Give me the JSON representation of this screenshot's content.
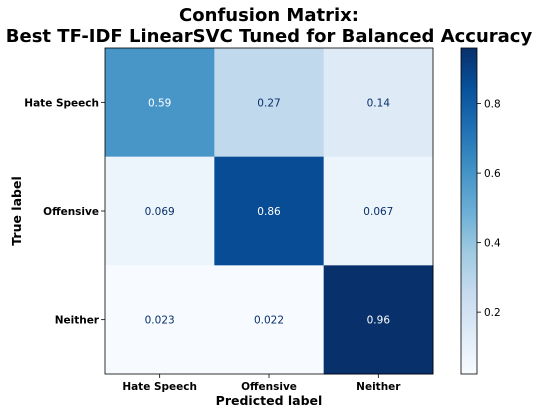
{
  "chart_data": {
    "type": "heatmap",
    "title_line1": "Confusion Matrix:",
    "title_line2": "Best TF-IDF LinearSVC Tuned for Balanced Accuracy",
    "xlabel": "Predicted label",
    "ylabel": "True label",
    "x_categories": [
      "Hate Speech",
      "Offensive",
      "Neither"
    ],
    "y_categories": [
      "Hate Speech",
      "Offensive",
      "Neither"
    ],
    "values": [
      [
        0.59,
        0.27,
        0.14
      ],
      [
        0.069,
        0.86,
        0.067
      ],
      [
        0.023,
        0.022,
        0.96
      ]
    ],
    "value_labels": [
      [
        "0.59",
        "0.27",
        "0.14"
      ],
      [
        "0.069",
        "0.86",
        "0.067"
      ],
      [
        "0.023",
        "0.022",
        "0.96"
      ]
    ],
    "colormap": "Blues",
    "colorbar": {
      "vmin": 0.022,
      "vmax": 0.96,
      "ticks": [
        0.2,
        0.4,
        0.6,
        0.8
      ],
      "tick_labels": [
        "0.2",
        "0.4",
        "0.6",
        "0.8"
      ]
    },
    "grid": false
  }
}
